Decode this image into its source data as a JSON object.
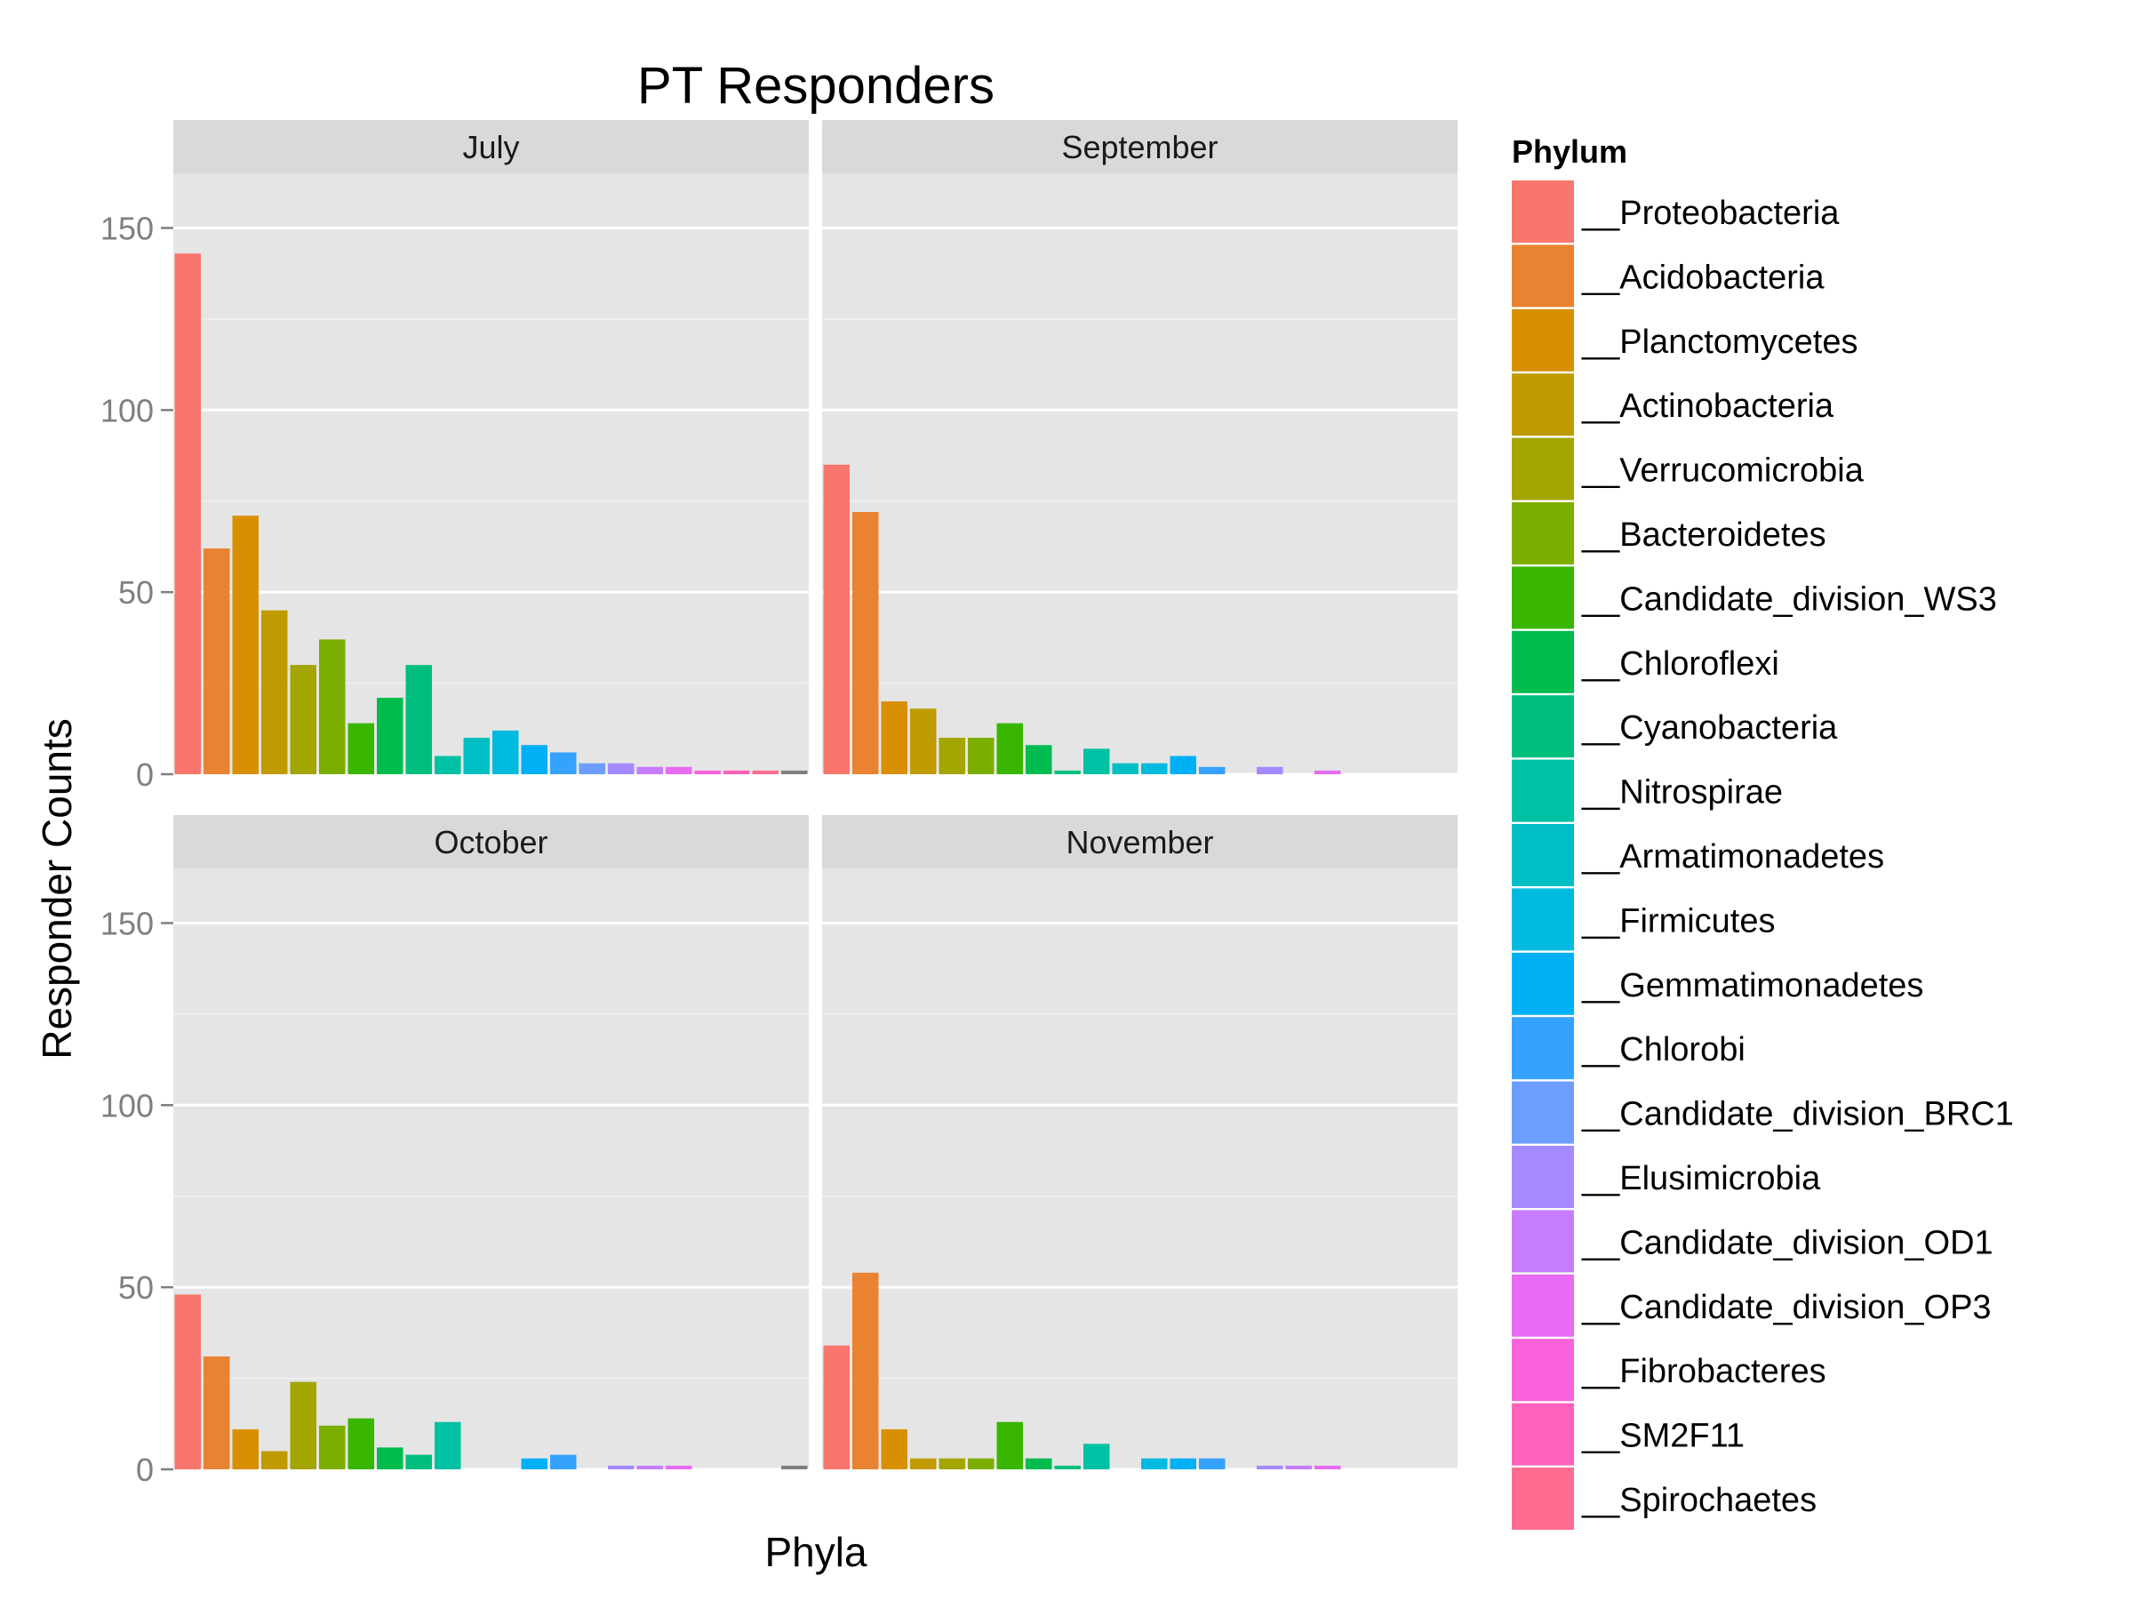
{
  "chart_data": {
    "type": "bar",
    "title": "PT Responders",
    "xlabel": "Phyla",
    "ylabel": "Responder Counts",
    "ylim": [
      0,
      165
    ],
    "y_ticks": [
      0,
      50,
      100,
      150
    ],
    "grid": true,
    "legend": {
      "title": "Phylum",
      "position": "right",
      "entries": [
        {
          "label": "__Proteobacteria",
          "color": "#F8766D"
        },
        {
          "label": "__Acidobacteria",
          "color": "#EA8331"
        },
        {
          "label": "__Planctomycetes",
          "color": "#D89000"
        },
        {
          "label": "__Actinobacteria",
          "color": "#C09B00"
        },
        {
          "label": "__Verrucomicrobia",
          "color": "#A3A500"
        },
        {
          "label": "__Bacteroidetes",
          "color": "#7CAE00"
        },
        {
          "label": "__Candidate_division_WS3",
          "color": "#39B600"
        },
        {
          "label": "__Chloroflexi",
          "color": "#00BB4E"
        },
        {
          "label": "__Cyanobacteria",
          "color": "#00BF7D"
        },
        {
          "label": "__Nitrospirae",
          "color": "#00C1A3"
        },
        {
          "label": "__Armatimonadetes",
          "color": "#00BFC4"
        },
        {
          "label": "__Firmicutes",
          "color": "#00BAE0"
        },
        {
          "label": "__Gemmatimonadetes",
          "color": "#00B0F6"
        },
        {
          "label": "__Chlorobi",
          "color": "#35A2FF"
        },
        {
          "label": "__Candidate_division_BRC1",
          "color": "#6D9EFF"
        },
        {
          "label": "__Elusimicrobia",
          "color": "#A58AFF"
        },
        {
          "label": "__Candidate_division_OD1",
          "color": "#C77CFF"
        },
        {
          "label": "__Candidate_division_OP3",
          "color": "#E76BF3"
        },
        {
          "label": "__Fibrobacteres",
          "color": "#FA62DB"
        },
        {
          "label": "__SM2F11",
          "color": "#FF62BC"
        },
        {
          "label": "__Spirochaetes",
          "color": "#FF6C90"
        }
      ]
    },
    "panels": [
      {
        "label": "July",
        "bars": [
          {
            "color": "#F8766D",
            "value": 143
          },
          {
            "color": "#EA8331",
            "value": 62
          },
          {
            "color": "#D89000",
            "value": 71
          },
          {
            "color": "#C09B00",
            "value": 45
          },
          {
            "color": "#A3A500",
            "value": 30
          },
          {
            "color": "#7CAE00",
            "value": 37
          },
          {
            "color": "#39B600",
            "value": 14
          },
          {
            "color": "#00BB4E",
            "value": 21
          },
          {
            "color": "#00BF7D",
            "value": 30
          },
          {
            "color": "#00C1A3",
            "value": 5
          },
          {
            "color": "#00BFC4",
            "value": 10
          },
          {
            "color": "#00BAE0",
            "value": 12
          },
          {
            "color": "#00B0F6",
            "value": 8
          },
          {
            "color": "#35A2FF",
            "value": 6
          },
          {
            "color": "#6D9EFF",
            "value": 3
          },
          {
            "color": "#A58AFF",
            "value": 3
          },
          {
            "color": "#C77CFF",
            "value": 2
          },
          {
            "color": "#E76BF3",
            "value": 2
          },
          {
            "color": "#FA62DB",
            "value": 1
          },
          {
            "color": "#FF62BC",
            "value": 1
          },
          {
            "color": "#FF6C90",
            "value": 1
          },
          {
            "color": "#7F7F7F",
            "value": 1
          }
        ]
      },
      {
        "label": "September",
        "bars": [
          {
            "color": "#F8766D",
            "value": 85
          },
          {
            "color": "#EA8331",
            "value": 72
          },
          {
            "color": "#D89000",
            "value": 20
          },
          {
            "color": "#C09B00",
            "value": 18
          },
          {
            "color": "#A3A500",
            "value": 10
          },
          {
            "color": "#7CAE00",
            "value": 10
          },
          {
            "color": "#39B600",
            "value": 14
          },
          {
            "color": "#00BB4E",
            "value": 8
          },
          {
            "color": "#00BF7D",
            "value": 1
          },
          {
            "color": "#00C1A3",
            "value": 7
          },
          {
            "color": "#00BFC4",
            "value": 3
          },
          {
            "color": "#00BAE0",
            "value": 3
          },
          {
            "color": "#00B0F6",
            "value": 5
          },
          {
            "color": "#35A2FF",
            "value": 2
          },
          {
            "color": "#6D9EFF",
            "value": 0
          },
          {
            "color": "#A58AFF",
            "value": 2
          },
          {
            "color": "#C77CFF",
            "value": 0
          },
          {
            "color": "#E76BF3",
            "value": 1
          },
          {
            "color": "#FA62DB",
            "value": 0
          },
          {
            "color": "#FF62BC",
            "value": 0
          },
          {
            "color": "#FF6C90",
            "value": 0
          },
          {
            "color": "#7F7F7F",
            "value": 0
          }
        ]
      },
      {
        "label": "October",
        "bars": [
          {
            "color": "#F8766D",
            "value": 48
          },
          {
            "color": "#EA8331",
            "value": 31
          },
          {
            "color": "#D89000",
            "value": 11
          },
          {
            "color": "#C09B00",
            "value": 5
          },
          {
            "color": "#A3A500",
            "value": 24
          },
          {
            "color": "#7CAE00",
            "value": 12
          },
          {
            "color": "#39B600",
            "value": 14
          },
          {
            "color": "#00BB4E",
            "value": 6
          },
          {
            "color": "#00BF7D",
            "value": 4
          },
          {
            "color": "#00C1A3",
            "value": 13
          },
          {
            "color": "#00BFC4",
            "value": 0
          },
          {
            "color": "#00BAE0",
            "value": 0
          },
          {
            "color": "#00B0F6",
            "value": 3
          },
          {
            "color": "#35A2FF",
            "value": 4
          },
          {
            "color": "#6D9EFF",
            "value": 0
          },
          {
            "color": "#A58AFF",
            "value": 1
          },
          {
            "color": "#C77CFF",
            "value": 1
          },
          {
            "color": "#E76BF3",
            "value": 1
          },
          {
            "color": "#FA62DB",
            "value": 0
          },
          {
            "color": "#FF62BC",
            "value": 0
          },
          {
            "color": "#FF6C90",
            "value": 0
          },
          {
            "color": "#7F7F7F",
            "value": 1
          }
        ]
      },
      {
        "label": "November",
        "bars": [
          {
            "color": "#F8766D",
            "value": 34
          },
          {
            "color": "#EA8331",
            "value": 54
          },
          {
            "color": "#D89000",
            "value": 11
          },
          {
            "color": "#C09B00",
            "value": 3
          },
          {
            "color": "#A3A500",
            "value": 3
          },
          {
            "color": "#7CAE00",
            "value": 3
          },
          {
            "color": "#39B600",
            "value": 13
          },
          {
            "color": "#00BB4E",
            "value": 3
          },
          {
            "color": "#00BF7D",
            "value": 1
          },
          {
            "color": "#00C1A3",
            "value": 7
          },
          {
            "color": "#00BFC4",
            "value": 0
          },
          {
            "color": "#00BAE0",
            "value": 3
          },
          {
            "color": "#00B0F6",
            "value": 3
          },
          {
            "color": "#35A2FF",
            "value": 3
          },
          {
            "color": "#6D9EFF",
            "value": 0
          },
          {
            "color": "#A58AFF",
            "value": 1
          },
          {
            "color": "#C77CFF",
            "value": 1
          },
          {
            "color": "#E76BF3",
            "value": 1
          },
          {
            "color": "#FA62DB",
            "value": 0
          },
          {
            "color": "#FF62BC",
            "value": 0
          },
          {
            "color": "#FF6C90",
            "value": 0
          },
          {
            "color": "#7F7F7F",
            "value": 0
          }
        ]
      }
    ]
  }
}
